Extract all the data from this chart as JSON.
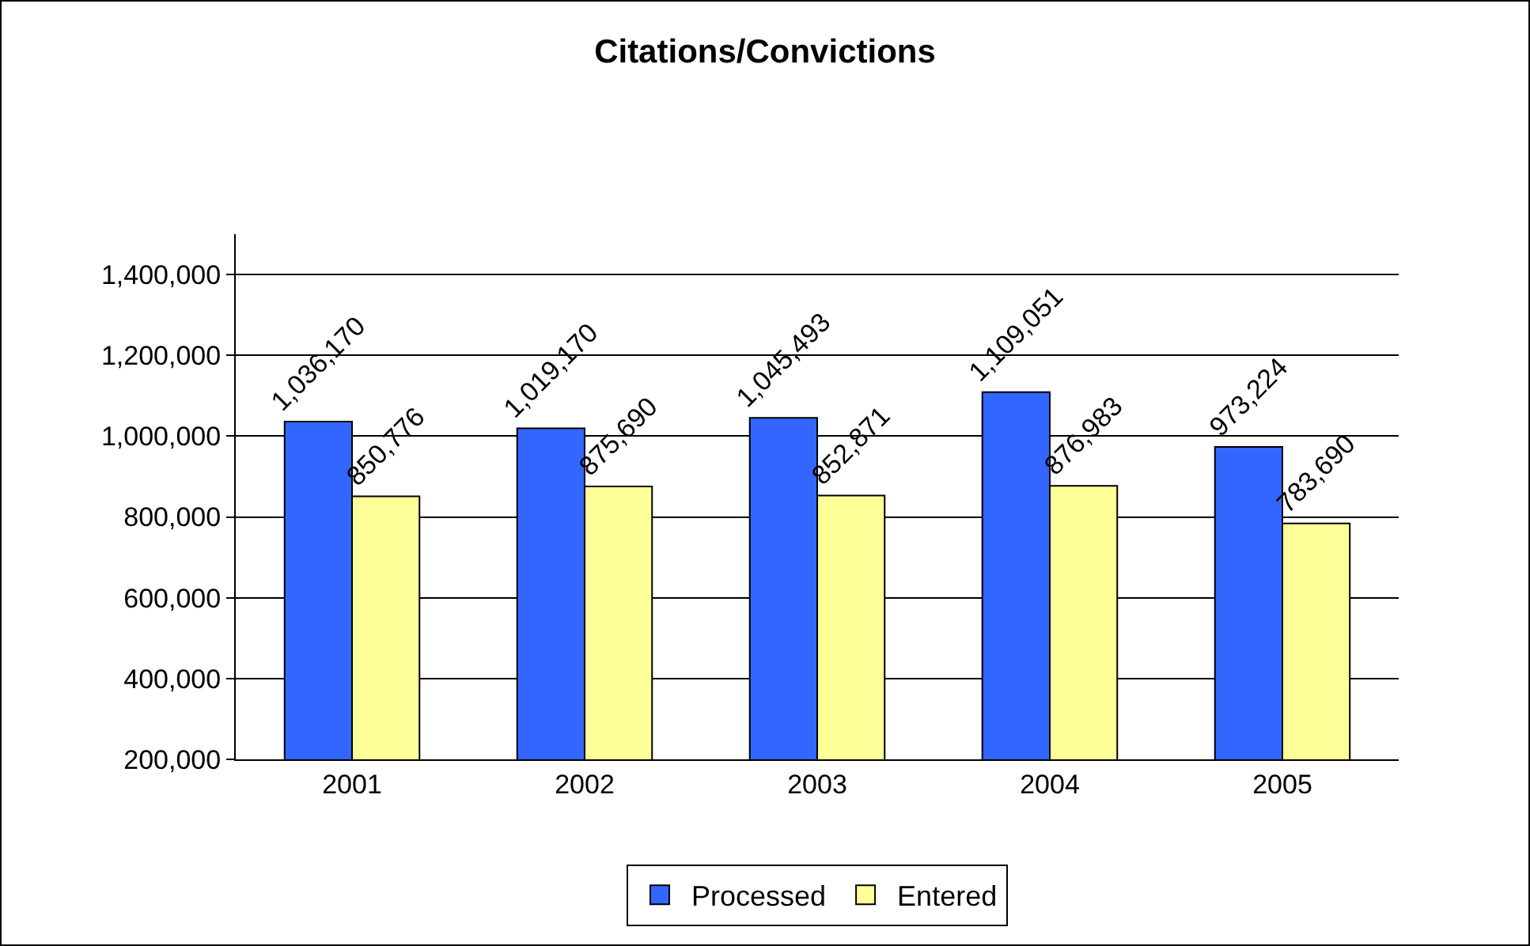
{
  "chart_data": {
    "type": "bar",
    "title": "Citations/Convictions",
    "categories": [
      "2001",
      "2002",
      "2003",
      "2004",
      "2005"
    ],
    "series": [
      {
        "name": "Processed",
        "color": "#3366ff",
        "values": [
          1036170,
          1019170,
          1045493,
          1109051,
          973224
        ],
        "value_labels": [
          "1,036,170",
          "1,019,170",
          "1,045,493",
          "1,109,051",
          "973,224"
        ]
      },
      {
        "name": "Entered",
        "color": "#ffff99",
        "values": [
          850776,
          875690,
          852871,
          876983,
          783690
        ],
        "value_labels": [
          "850,776",
          "875,690",
          "852,871",
          "876,983",
          "783,690"
        ]
      }
    ],
    "ylim": [
      200000,
      1500000
    ],
    "yticks": [
      {
        "value": 200000,
        "label": "200,000"
      },
      {
        "value": 400000,
        "label": "400,000"
      },
      {
        "value": 600000,
        "label": "600,000"
      },
      {
        "value": 800000,
        "label": "800,000"
      },
      {
        "value": 1000000,
        "label": "1,000,000"
      },
      {
        "value": 1200000,
        "label": "1,200,000"
      },
      {
        "value": 1400000,
        "label": "1,400,000"
      }
    ],
    "grid": "y",
    "legend": "bottom"
  }
}
